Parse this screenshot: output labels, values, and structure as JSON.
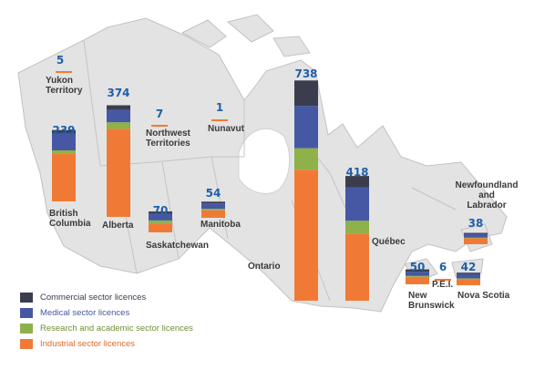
{
  "colors": {
    "commercial": "#3a3d4e",
    "medical": "#4658a3",
    "research": "#8fb14a",
    "industrial": "#f07a35"
  },
  "legend": [
    {
      "key": "commercial",
      "label": "Commercial sector licences",
      "color": "#3a3d4e",
      "text_color": "#3a3d4e"
    },
    {
      "key": "medical",
      "label": "Medical sector licences",
      "color": "#4658a3",
      "text_color": "#4658a3"
    },
    {
      "key": "research",
      "label": "Research and academic sector licences",
      "color": "#8fb14a",
      "text_color": "#6f8f34"
    },
    {
      "key": "industrial",
      "label": "Industrial sector licences",
      "color": "#f07a35",
      "text_color": "#e0692a"
    }
  ],
  "provinces": [
    {
      "id": "yukon",
      "name": [
        "Yukon",
        "Territory"
      ],
      "total": "5"
    },
    {
      "id": "bc",
      "name": [
        "British",
        "Columbia"
      ],
      "total": "239",
      "commercial": 12,
      "medical": 56,
      "research": 10,
      "industrial": 161
    },
    {
      "id": "alberta",
      "name": [
        "Alberta"
      ],
      "total": "374",
      "commercial": 15,
      "medical": 42,
      "research": 22,
      "industrial": 295
    },
    {
      "id": "nwt",
      "name": [
        "Northwest",
        "Territories"
      ],
      "total": "7"
    },
    {
      "id": "nunavut",
      "name": [
        "Nunavut"
      ],
      "total": "1"
    },
    {
      "id": "sask",
      "name": [
        "Saskatchewan"
      ],
      "total": "70",
      "commercial": 8,
      "medical": 22,
      "research": 10,
      "industrial": 30
    },
    {
      "id": "manitoba",
      "name": [
        "Manitoba"
      ],
      "total": "54",
      "commercial": 6,
      "medical": 18,
      "research": 5,
      "industrial": 25
    },
    {
      "id": "ontario",
      "name": [
        "Ontario"
      ],
      "total": "738",
      "commercial": 85,
      "medical": 142,
      "research": 72,
      "industrial": 439
    },
    {
      "id": "quebec",
      "name": [
        "Québec"
      ],
      "total": "418",
      "commercial": 38,
      "medical": 112,
      "research": 43,
      "industrial": 225
    },
    {
      "id": "nl",
      "name": [
        "Newfoundland",
        "and",
        "Labrador"
      ],
      "total": "38",
      "commercial": 4,
      "medical": 12,
      "research": 2,
      "industrial": 20
    },
    {
      "id": "nb",
      "name": [
        "New",
        "Brunswick"
      ],
      "total": "50",
      "commercial": 8,
      "medical": 14,
      "research": 3,
      "industrial": 25
    },
    {
      "id": "pei",
      "name": [
        "P.E.I."
      ],
      "total": "6"
    },
    {
      "id": "ns",
      "name": [
        "Nova Scotia"
      ],
      "total": "42",
      "commercial": 5,
      "medical": 14,
      "research": 3,
      "industrial": 20
    }
  ]
}
